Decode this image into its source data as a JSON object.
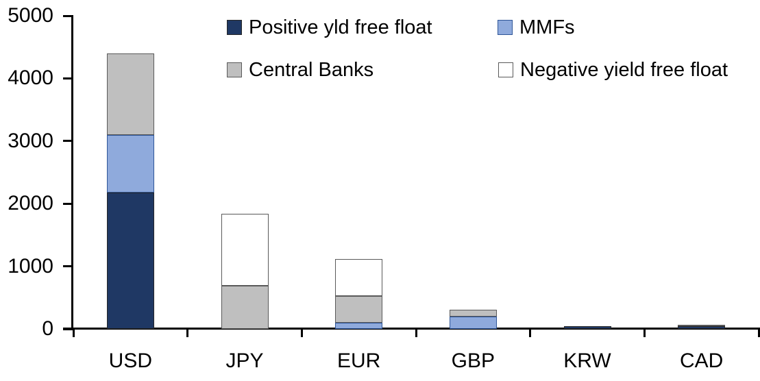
{
  "chart_data": {
    "type": "bar",
    "stacked": true,
    "title": "",
    "xlabel": "",
    "ylabel": "",
    "categories": [
      "USD",
      "JPY",
      "EUR",
      "GBP",
      "KRW",
      "CAD"
    ],
    "series": [
      {
        "name": "Positive yld free float",
        "color": "#1F3864",
        "border_color": "#262626",
        "values": [
          2180,
          0,
          0,
          0,
          40,
          40
        ]
      },
      {
        "name": "MMFs",
        "color": "#8FAADC",
        "border_color": "#2E5597",
        "values": [
          920,
          0,
          95,
          200,
          0,
          0
        ]
      },
      {
        "name": "Central Banks",
        "color": "#BFBFBF",
        "border_color": "#595959",
        "values": [
          1300,
          690,
          430,
          110,
          0,
          30
        ]
      },
      {
        "name": "Negative yield free float",
        "color": "#FFFFFF",
        "border_color": "#595959",
        "values": [
          0,
          1150,
          590,
          0,
          0,
          0
        ]
      }
    ],
    "totals": [
      4400,
      1840,
      1115,
      310,
      40,
      70
    ],
    "ylim": [
      0,
      5000
    ],
    "ytick_labels": [
      "0",
      "1000",
      "2000",
      "3000",
      "4000",
      "5000"
    ],
    "grid": false,
    "legend_position": "top",
    "legend_rows": [
      [
        "Positive yld free float",
        "MMFs"
      ],
      [
        "Central Banks",
        "Negative yield free float"
      ]
    ],
    "axis_color": "#000000",
    "text_color": "#000000",
    "background_color": "#FFFFFF"
  }
}
